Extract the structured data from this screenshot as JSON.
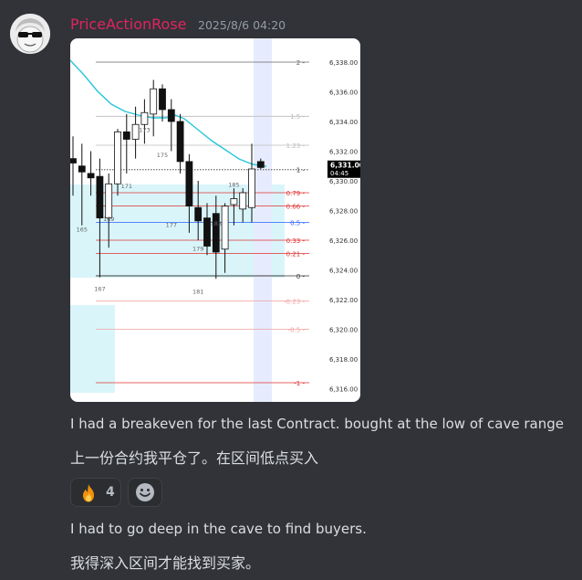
{
  "message": {
    "username": "PriceActionRose",
    "timestamp": "2025/8/6 04:20",
    "text1": "I had a breakeven for the last Contract. bought at the low of cave range",
    "text2": "上一份合约我平仓了。在区间低点买入",
    "text3": "I had to go deep in the cave to find buyers.",
    "text4": "我得深入区间才能找到买家。"
  },
  "reactions": [
    {
      "emoji": "🔥",
      "count": "4",
      "icon": "fire-icon"
    }
  ],
  "add_reaction_icon": "smiley-icon",
  "chart_data": {
    "type": "candlestick",
    "price_axis": {
      "min": 6315.5,
      "max": 6339.0,
      "labels": [
        "6,338.00",
        "6,336.00",
        "6,334.00",
        "6,332.00",
        "6,330.00",
        "6,328.00",
        "6,326.00",
        "6,324.00",
        "6,322.00",
        "6,320.00",
        "6,318.00",
        "6,316.00"
      ]
    },
    "current_price": {
      "value": "6,331.00",
      "time": "04:45"
    },
    "fib_levels": [
      {
        "label": "2",
        "price": 6338.0,
        "color": "#666666"
      },
      {
        "label": "1.5",
        "price": 6334.35,
        "color": "#bbbbbb"
      },
      {
        "label": "1.23",
        "price": 6332.4,
        "color": "#bbbbbb"
      },
      {
        "label": "1",
        "price": 6330.75,
        "color": "#333333"
      },
      {
        "label": "0.79",
        "price": 6329.2,
        "color": "#e03030"
      },
      {
        "label": "0.66",
        "price": 6328.3,
        "color": "#e03030"
      },
      {
        "label": "0.5",
        "price": 6327.2,
        "color": "#2962ff"
      },
      {
        "label": "0.33",
        "price": 6326.0,
        "color": "#e03030"
      },
      {
        "label": "0.21",
        "price": 6325.1,
        "color": "#e03030"
      },
      {
        "label": "0",
        "price": 6323.6,
        "color": "#333333"
      },
      {
        "label": "-0.23",
        "price": 6321.9,
        "color": "#f0a0a0"
      },
      {
        "label": "-0.5",
        "price": 6320.0,
        "color": "#f0a0a0"
      },
      {
        "label": "-1",
        "price": 6316.4,
        "color": "#e03030"
      }
    ],
    "bar_labels": [
      {
        "text": "165",
        "bar": 1,
        "price": 6326.6
      },
      {
        "text": "167",
        "bar": 3,
        "price": 6322.6
      },
      {
        "text": "169",
        "bar": 4,
        "price": 6327.3
      },
      {
        "text": "171",
        "bar": 6,
        "price": 6329.5
      },
      {
        "text": "173",
        "bar": 8,
        "price": 6333.3
      },
      {
        "text": "175",
        "bar": 10,
        "price": 6331.6
      },
      {
        "text": "177",
        "bar": 11,
        "price": 6326.9
      },
      {
        "text": "179",
        "bar": 14,
        "price": 6325.3
      },
      {
        "text": "181",
        "bar": 14,
        "price": 6322.4
      },
      {
        "text": "183",
        "bar": 16,
        "price": 6327.0
      },
      {
        "text": "185",
        "bar": 18,
        "price": 6329.6
      }
    ],
    "candles": [
      {
        "o": 6331.5,
        "h": 6333.0,
        "l": 6329.0,
        "c": 6331.2
      },
      {
        "o": 6331.0,
        "h": 6332.5,
        "l": 6327.0,
        "c": 6330.6
      },
      {
        "o": 6330.5,
        "h": 6332.0,
        "l": 6329.0,
        "c": 6330.2
      },
      {
        "o": 6330.3,
        "h": 6331.5,
        "l": 6323.5,
        "c": 6327.5
      },
      {
        "o": 6327.5,
        "h": 6330.5,
        "l": 6325.5,
        "c": 6329.8
      },
      {
        "o": 6329.8,
        "h": 6333.5,
        "l": 6329.0,
        "c": 6333.3
      },
      {
        "o": 6333.3,
        "h": 6334.5,
        "l": 6330.5,
        "c": 6332.8
      },
      {
        "o": 6332.8,
        "h": 6335.0,
        "l": 6331.5,
        "c": 6333.8
      },
      {
        "o": 6333.8,
        "h": 6335.5,
        "l": 6332.5,
        "c": 6334.6
      },
      {
        "o": 6334.5,
        "h": 6336.8,
        "l": 6333.0,
        "c": 6336.2
      },
      {
        "o": 6336.2,
        "h": 6336.5,
        "l": 6334.0,
        "c": 6334.8
      },
      {
        "o": 6334.8,
        "h": 6335.5,
        "l": 6332.0,
        "c": 6334.0
      },
      {
        "o": 6334.0,
        "h": 6334.5,
        "l": 6330.5,
        "c": 6331.3
      },
      {
        "o": 6331.3,
        "h": 6331.8,
        "l": 6326.5,
        "c": 6328.3
      },
      {
        "o": 6328.2,
        "h": 6330.0,
        "l": 6326.0,
        "c": 6327.3
      },
      {
        "o": 6327.5,
        "h": 6328.5,
        "l": 6325.0,
        "c": 6325.6
      },
      {
        "o": 6327.8,
        "h": 6329.0,
        "l": 6323.4,
        "c": 6325.2
      },
      {
        "o": 6325.4,
        "h": 6328.5,
        "l": 6323.8,
        "c": 6328.3
      },
      {
        "o": 6328.4,
        "h": 6329.5,
        "l": 6327.0,
        "c": 6328.8
      },
      {
        "o": 6328.1,
        "h": 6329.5,
        "l": 6327.2,
        "c": 6329.2
      },
      {
        "o": 6328.2,
        "h": 6332.5,
        "l": 6327.2,
        "c": 6330.8
      },
      {
        "o": 6331.3,
        "h": 6331.5,
        "l": 6330.8,
        "c": 6330.9
      }
    ]
  }
}
